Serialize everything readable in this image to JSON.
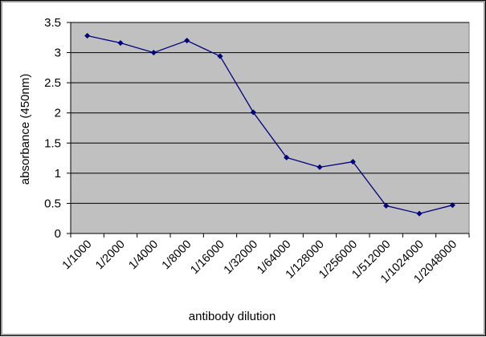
{
  "chart_data": {
    "type": "line",
    "title": "",
    "xlabel": "antibody dilution",
    "ylabel": "absorbance (450nm)",
    "ylim": [
      0,
      3.5
    ],
    "yticks": [
      "0",
      "0.5",
      "1",
      "1.5",
      "2",
      "2.5",
      "3",
      "3.5"
    ],
    "grid": true,
    "legend": "none",
    "categories": [
      "1/1000",
      "1/2000",
      "1/4000",
      "1/8000",
      "1/16000",
      "1/32000",
      "1/64000",
      "1/128000",
      "1/256000",
      "1/512000",
      "1/1024000",
      "1/2048000"
    ],
    "series": [
      {
        "values": [
          3.28,
          3.16,
          3.0,
          3.2,
          2.94,
          2.01,
          1.26,
          1.1,
          1.19,
          0.46,
          0.33,
          0.47
        ],
        "color": "#000080"
      }
    ],
    "plot_background": "#c0c0c0"
  }
}
